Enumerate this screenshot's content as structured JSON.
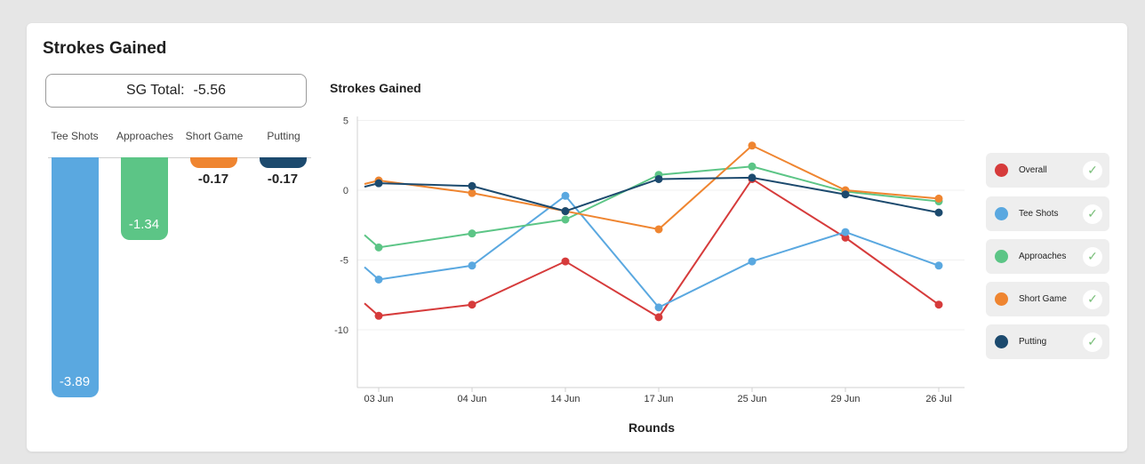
{
  "card": {
    "title": "Strokes Gained"
  },
  "sg_total": {
    "label": "SG Total:",
    "value": "-5.56"
  },
  "bars": [
    {
      "label": "Tee Shots",
      "value": -3.89,
      "display": "-3.89",
      "color": "#5aa8e0"
    },
    {
      "label": "Approaches",
      "value": -1.34,
      "display": "-1.34",
      "color": "#5cc586"
    },
    {
      "label": "Short Game",
      "value": -0.17,
      "display": "-0.17",
      "color": "#ef8530"
    },
    {
      "label": "Putting",
      "value": -0.17,
      "display": "-0.17",
      "color": "#1c4a6e"
    }
  ],
  "chart_data": {
    "type": "line",
    "title": "Strokes Gained",
    "xlabel": "Rounds",
    "ylabel": "",
    "x": [
      "03 Jun",
      "04 Jun",
      "14 Jun",
      "17 Jun",
      "25 Jun",
      "29 Jun",
      "26 Jul"
    ],
    "yticks": [
      5,
      0,
      -5,
      -10
    ],
    "ylim": [
      -14,
      5
    ],
    "grid": true,
    "legend": "right",
    "series": [
      {
        "name": "Overall",
        "color": "#d63b3b",
        "values": [
          -9.0,
          -8.2,
          -5.1,
          -9.1,
          0.8,
          -3.4,
          -8.2
        ]
      },
      {
        "name": "Tee Shots",
        "color": "#5aa8e0",
        "values": [
          -6.4,
          -5.4,
          -0.4,
          -8.4,
          -5.1,
          -3.0,
          -5.4
        ]
      },
      {
        "name": "Approaches",
        "color": "#5cc586",
        "values": [
          -4.1,
          -3.1,
          -2.1,
          1.1,
          1.7,
          -0.1,
          -0.8
        ]
      },
      {
        "name": "Short Game",
        "color": "#ef8530",
        "values": [
          0.7,
          -0.2,
          -1.5,
          -2.8,
          3.2,
          0.0,
          -0.6
        ]
      },
      {
        "name": "Putting",
        "color": "#1c4a6e",
        "values": [
          0.5,
          0.3,
          -1.5,
          0.8,
          0.9,
          -0.3,
          -1.6
        ]
      }
    ]
  },
  "legend": [
    {
      "label": "Overall",
      "color": "#d63b3b",
      "check": "✓"
    },
    {
      "label": "Tee Shots",
      "color": "#5aa8e0",
      "check": "✓"
    },
    {
      "label": "Approaches",
      "color": "#5cc586",
      "check": "✓"
    },
    {
      "label": "Short Game",
      "color": "#ef8530",
      "check": "✓"
    },
    {
      "label": "Putting",
      "color": "#1c4a6e",
      "check": "✓"
    }
  ]
}
